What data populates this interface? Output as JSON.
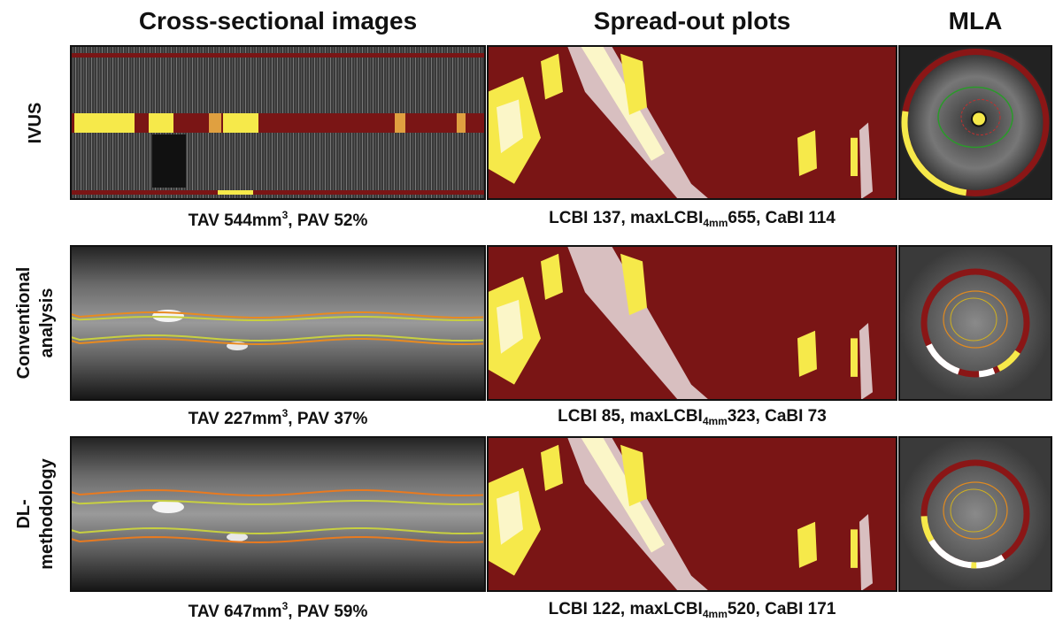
{
  "headers": [
    "Cross-sectional images",
    "Spread-out plots",
    "MLA"
  ],
  "rows": [
    {
      "label": [
        "IVUS"
      ],
      "cross_caption": {
        "text": "TAV 544mm",
        "sup": "3",
        "rest": ", PAV 52%"
      },
      "plot_caption": {
        "text": "LCBI 137, maxLCBI",
        "sub": "4mm",
        "rest": "655, CaBI 114"
      }
    },
    {
      "label": [
        "Conventional",
        "analysis"
      ],
      "cross_caption": {
        "text": "TAV 227mm",
        "sup": "3",
        "rest": ", PAV 37%"
      },
      "plot_caption": {
        "text": "LCBI 85, maxLCBI",
        "sub": "4mm",
        "rest": "323, CaBI 73"
      }
    },
    {
      "label": [
        "DL-",
        "methodology"
      ],
      "cross_caption": {
        "text": "TAV 647mm",
        "sup": "3",
        "rest": ", PAV 59%"
      },
      "plot_caption": {
        "text": "LCBI 122, maxLCBI",
        "sub": "4mm",
        "rest": "520, CaBI 171"
      }
    }
  ]
}
